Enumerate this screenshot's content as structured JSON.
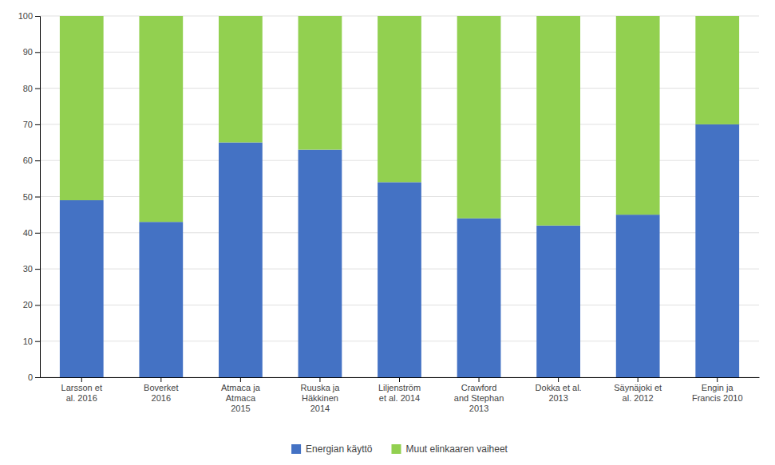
{
  "chart_data": {
    "type": "bar",
    "stacked": true,
    "categories": [
      "Larsson et\nal. 2016",
      "Boverket\n2016",
      "Atmaca ja\nAtmaca\n2015",
      "Ruuska ja\nHäkkinen\n2014",
      "Liljenström\net al. 2014",
      "Crawford\nand Stephan\n2013",
      "Dokka et al.\n2013",
      "Säynäjoki et\nal. 2012",
      "Engin ja\nFrancis 2010"
    ],
    "series": [
      {
        "name": "Energian käyttö",
        "color": "#4472c4",
        "values": [
          49,
          43,
          65,
          63,
          54,
          44,
          42,
          45,
          70
        ]
      },
      {
        "name": "Muut elinkaaren vaiheet",
        "color": "#92d050",
        "values": [
          51,
          57,
          35,
          37,
          46,
          56,
          58,
          55,
          30
        ]
      }
    ],
    "ylim": [
      0,
      100
    ],
    "yticks": [
      0,
      10,
      20,
      30,
      40,
      50,
      60,
      70,
      80,
      90,
      100
    ],
    "grid": true,
    "legend": "bottom"
  }
}
